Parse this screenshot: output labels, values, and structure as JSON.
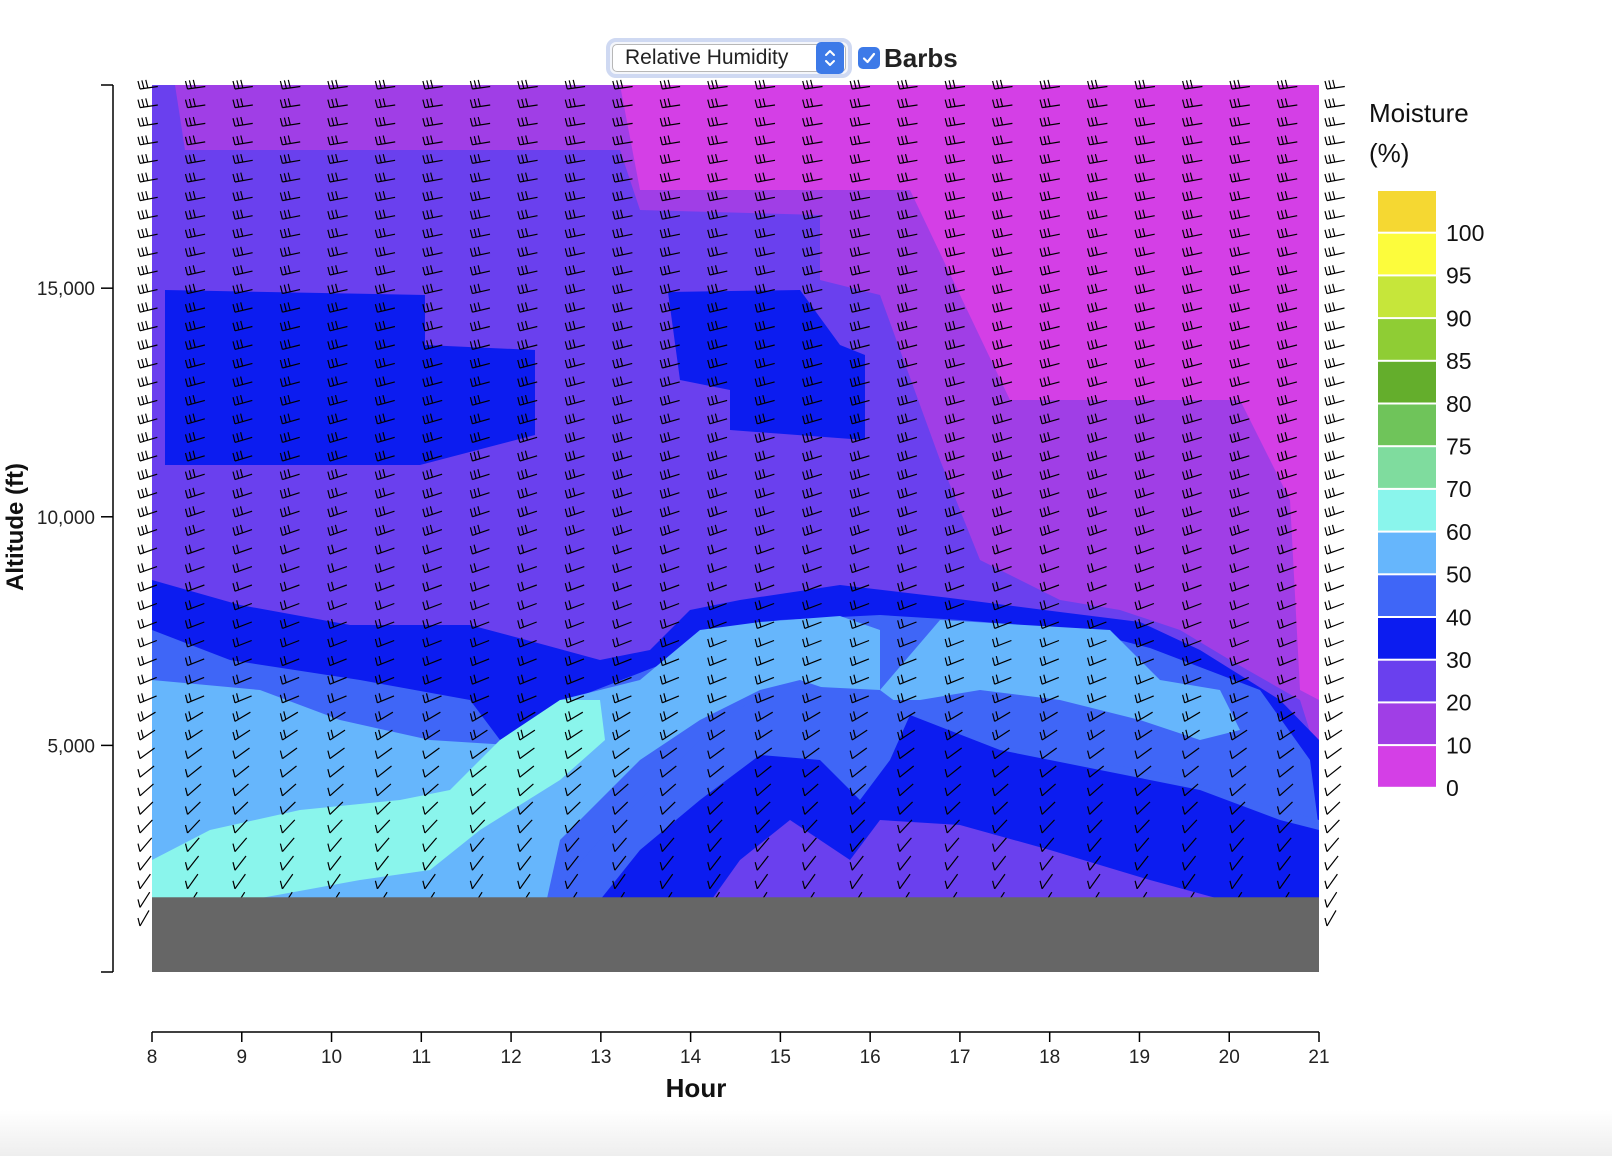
{
  "controls": {
    "variable_select": {
      "selected": "Relative Humidity"
    },
    "barbs_checkbox": {
      "label": "Barbs",
      "checked": true
    },
    "icons": [
      "chevron-up-down-icon",
      "checkmark-icon"
    ]
  },
  "chart_data": {
    "type": "heatmap",
    "title": "",
    "xlabel": "Hour",
    "ylabel": "Altitude (ft)",
    "x_ticks": [
      "8",
      "9",
      "10",
      "11",
      "12",
      "13",
      "14",
      "15",
      "16",
      "17",
      "18",
      "19",
      "20",
      "21"
    ],
    "y_ticks": [
      "5,000",
      "10,000",
      "15,000"
    ],
    "y_tick_values": [
      5000,
      10000,
      15000
    ],
    "xlim": [
      8,
      21
    ],
    "ylim": [
      0,
      19400
    ],
    "ground_level_ft": 1000,
    "wind_barbs_shown": true,
    "legend": {
      "title_lines": [
        "Moisture",
        "(%)"
      ],
      "labels": [
        "100",
        "95",
        "90",
        "85",
        "80",
        "75",
        "70",
        "60",
        "50",
        "40",
        "30",
        "20",
        "10",
        "0"
      ],
      "colors": [
        "#f5d832",
        "#fcfc3c",
        "#c6e63a",
        "#8fcd34",
        "#64ae2c",
        "#6fc45a",
        "#7fdc9e",
        "#8af5ec",
        "#66b6fc",
        "#3f66f7",
        "#0c1cf0",
        "#6a40ee",
        "#a03ee6",
        "#d43fe6"
      ],
      "placement": "right"
    },
    "colors": {
      "ground": "#666666",
      "barb": "#000000"
    }
  }
}
